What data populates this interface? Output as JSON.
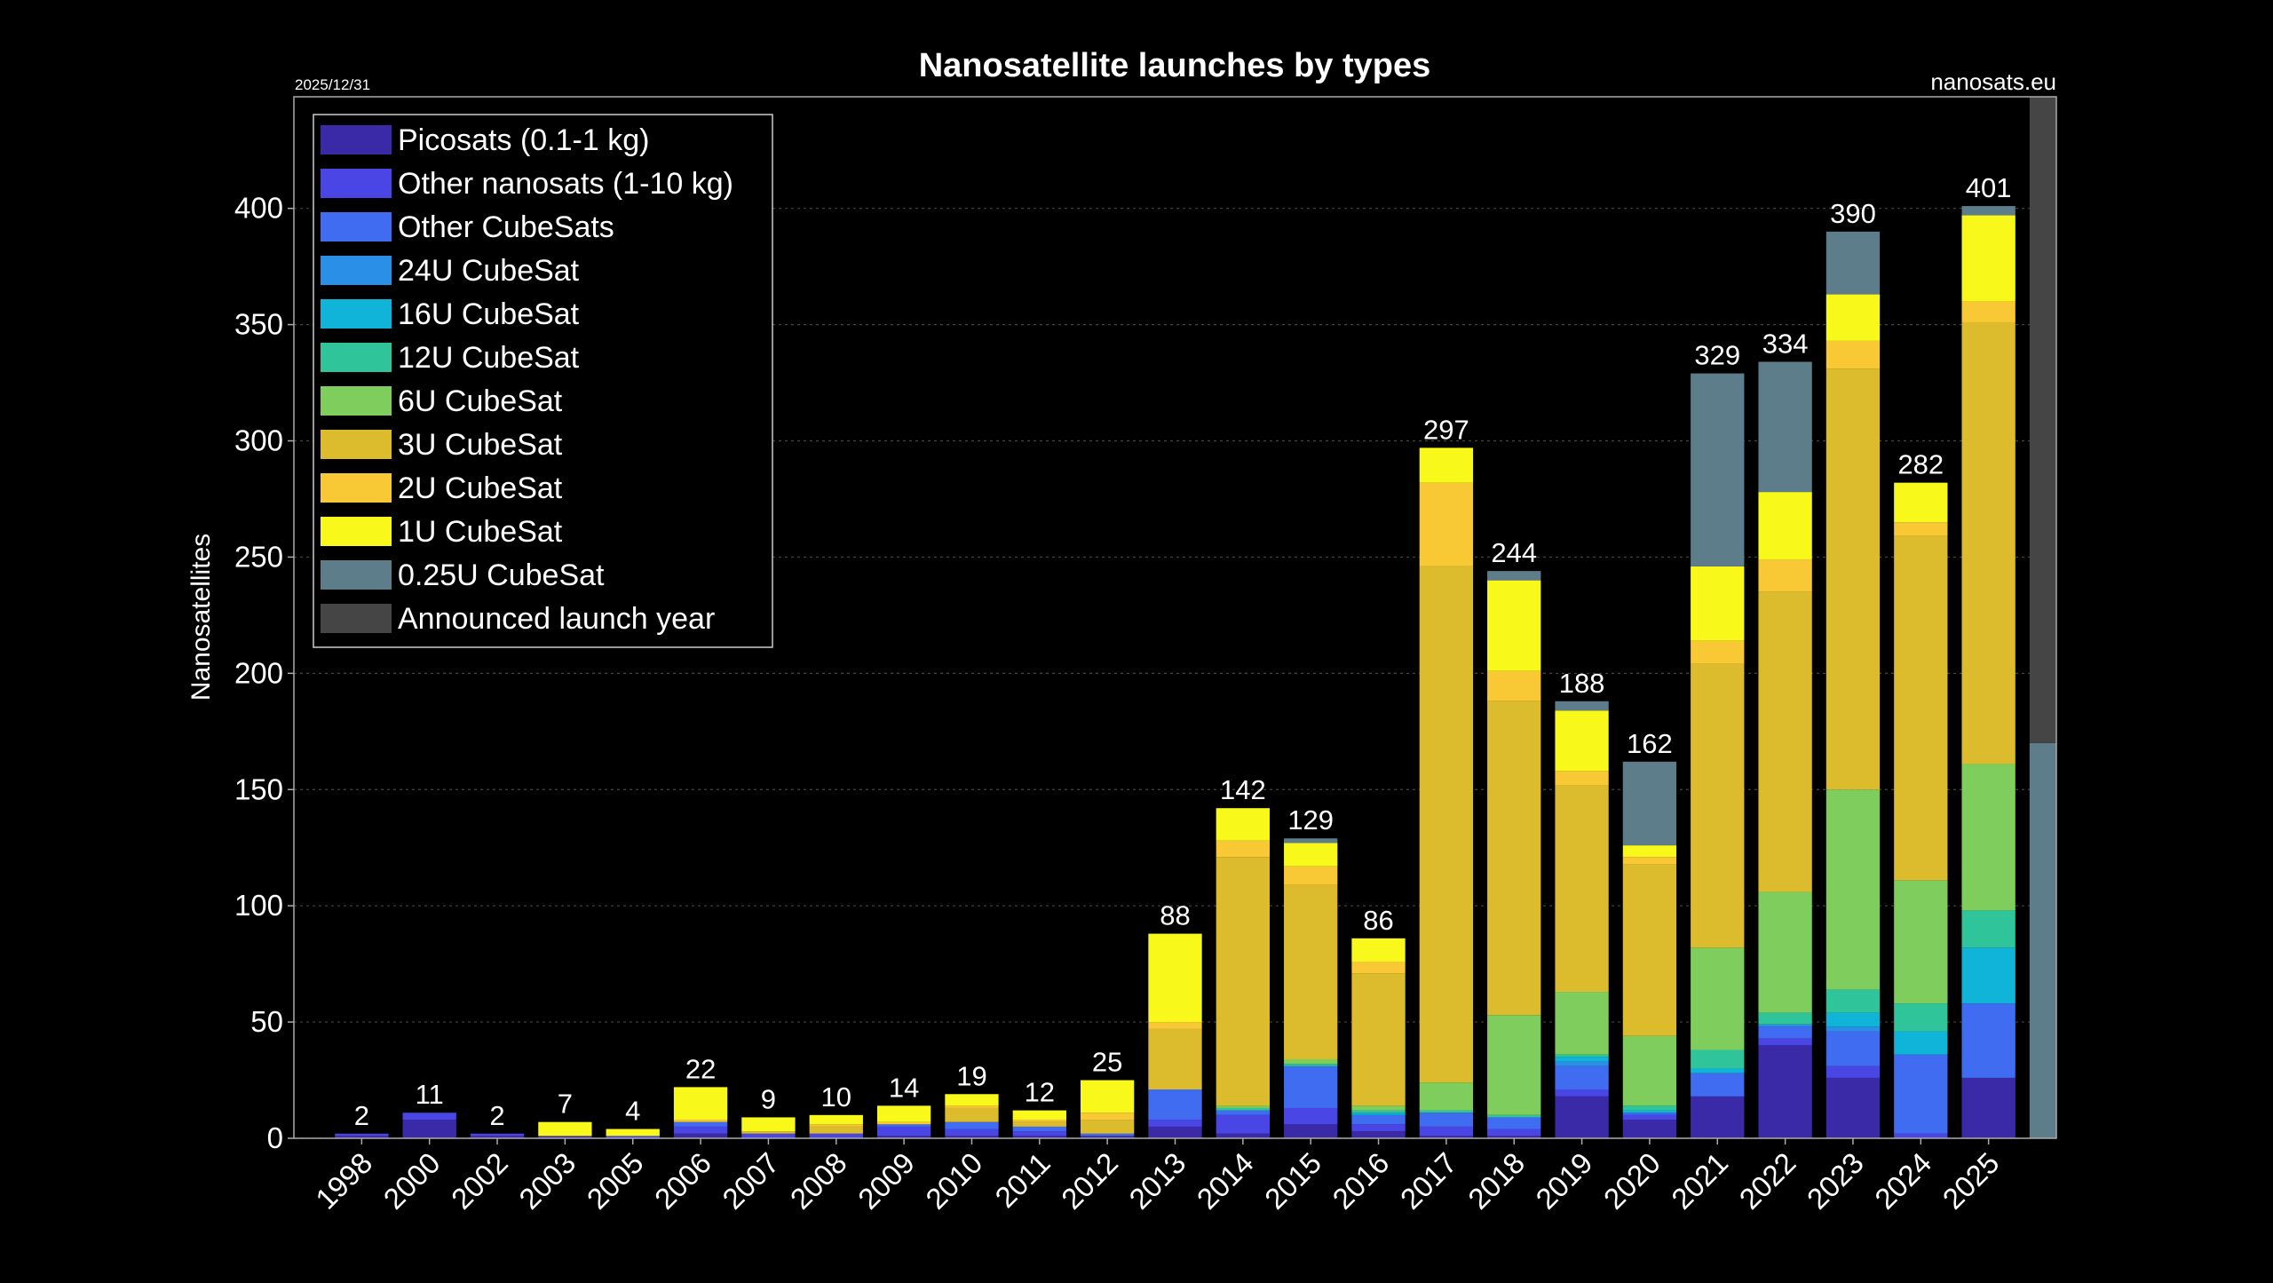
{
  "chart_data": {
    "type": "stacked_bar",
    "title": "Nanosatellite launches by types",
    "date_note": "2025/12/31",
    "source": "nanosats.eu",
    "y_label": "Nanosatellites",
    "categories": [
      "1998",
      "2000",
      "2002",
      "2003",
      "2005",
      "2006",
      "2007",
      "2008",
      "2009",
      "2010",
      "2011",
      "2012",
      "2013",
      "2014",
      "2015",
      "2016",
      "2017",
      "2018",
      "2019",
      "2020",
      "2021",
      "2022",
      "2023",
      "2024",
      "2025",
      null
    ],
    "totals": [
      2,
      11,
      2,
      7,
      4,
      22,
      9,
      10,
      14,
      19,
      12,
      25,
      88,
      142,
      129,
      86,
      297,
      244,
      188,
      162,
      329,
      334,
      390,
      282,
      401,
      null
    ],
    "ylim": [
      0,
      448
    ],
    "yticks": [
      0,
      50,
      100,
      150,
      200,
      250,
      300,
      350,
      400
    ],
    "grid": true,
    "legend": "upper left",
    "series": [
      {
        "name": "Picosats (0.1-1 kg)",
        "color": "#3b2aa8",
        "values": [
          1,
          8,
          1,
          1,
          0,
          2,
          0,
          0,
          1,
          1,
          1,
          1,
          5,
          2,
          6,
          3,
          1,
          1,
          18,
          8,
          18,
          40,
          26,
          0,
          26,
          null
        ]
      },
      {
        "name": "Other nanosats (1-10 kg)",
        "color": "#4a46e6",
        "values": [
          1,
          3,
          1,
          0,
          1,
          3,
          2,
          2,
          4,
          3,
          2,
          0,
          3,
          8,
          7,
          3,
          4,
          3,
          3,
          2,
          0,
          3,
          5,
          2,
          0,
          null
        ]
      },
      {
        "name": "Other CubeSats",
        "color": "#3f6cf0",
        "values": [
          0,
          0,
          0,
          0,
          0,
          2,
          0,
          0,
          1,
          3,
          2,
          1,
          13,
          2,
          18,
          4,
          6,
          5,
          10,
          1,
          10,
          5,
          15,
          34,
          32,
          null
        ]
      },
      {
        "name": "24U CubeSat",
        "color": "#2a8fe6",
        "values": [
          0,
          0,
          0,
          0,
          0,
          0,
          0,
          0,
          0,
          0,
          0,
          0,
          0,
          0,
          0,
          0,
          0,
          0,
          2,
          0,
          0,
          1,
          2,
          0,
          0,
          null
        ]
      },
      {
        "name": "16U CubeSat",
        "color": "#10b4d8",
        "values": [
          0,
          0,
          0,
          0,
          0,
          0,
          0,
          0,
          0,
          0,
          0,
          0,
          0,
          0,
          0,
          1,
          0,
          0,
          2,
          1,
          2,
          0,
          6,
          10,
          24,
          null
        ]
      },
      {
        "name": "12U CubeSat",
        "color": "#2fc49a",
        "values": [
          0,
          0,
          0,
          0,
          0,
          0,
          0,
          0,
          0,
          0,
          0,
          0,
          0,
          1,
          1,
          1,
          1,
          1,
          1,
          2,
          8,
          5,
          10,
          12,
          16,
          null
        ]
      },
      {
        "name": "6U CubeSat",
        "color": "#7fcd5c",
        "values": [
          0,
          0,
          0,
          0,
          0,
          0,
          0,
          0,
          0,
          0,
          0,
          0,
          0,
          1,
          2,
          2,
          12,
          43,
          27,
          30,
          44,
          52,
          86,
          53,
          63,
          null
        ]
      },
      {
        "name": "3U CubeSat",
        "color": "#dcbb2c",
        "values": [
          0,
          0,
          0,
          0,
          0,
          0,
          1,
          3,
          0,
          6,
          2,
          6,
          26,
          107,
          75,
          57,
          222,
          135,
          89,
          74,
          122,
          129,
          181,
          148,
          190,
          null
        ]
      },
      {
        "name": "2U CubeSat",
        "color": "#f8c934",
        "values": [
          0,
          0,
          0,
          0,
          0,
          1,
          0,
          1,
          1,
          1,
          1,
          3,
          3,
          7,
          8,
          5,
          36,
          13,
          6,
          3,
          10,
          14,
          12,
          6,
          9,
          null
        ]
      },
      {
        "name": "1U CubeSat",
        "color": "#f8f81a",
        "values": [
          0,
          0,
          0,
          6,
          3,
          14,
          6,
          4,
          7,
          5,
          4,
          14,
          38,
          14,
          10,
          10,
          15,
          39,
          26,
          5,
          32,
          29,
          20,
          17,
          37,
          null
        ]
      },
      {
        "name": "0.25U CubeSat",
        "color": "#5d7d8a",
        "values": [
          0,
          0,
          0,
          0,
          0,
          0,
          0,
          0,
          0,
          0,
          0,
          0,
          0,
          0,
          2,
          0,
          0,
          4,
          4,
          36,
          83,
          56,
          27,
          0,
          4,
          170
        ]
      },
      {
        "name": "Announced launch year",
        "color": "#454545",
        "values": [
          null,
          null,
          null,
          null,
          null,
          null,
          null,
          null,
          null,
          null,
          null,
          null,
          null,
          null,
          null,
          null,
          null,
          null,
          null,
          null,
          null,
          null,
          null,
          null,
          null,
          290
        ]
      }
    ]
  }
}
